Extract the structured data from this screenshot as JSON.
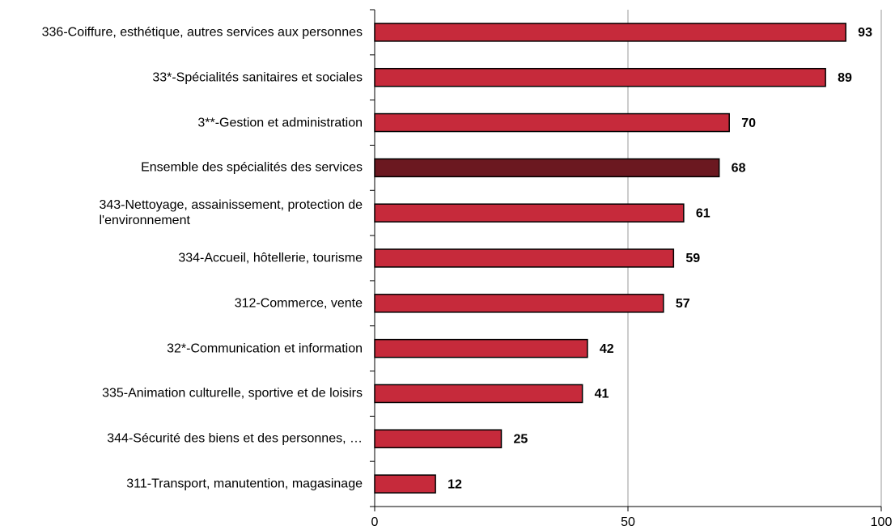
{
  "chart_data": {
    "type": "barh",
    "categories": [
      "336-Coiffure, esthétique, autres services aux personnes",
      "33*-Spécialités sanitaires et sociales",
      "3**-Gestion et administration",
      "Ensemble des spécialités des services",
      "343-Nettoyage, assainissement, protection de\nl'environnement",
      "334-Accueil, hôtellerie, tourisme",
      "312-Commerce, vente",
      "32*-Communication et information",
      "335-Animation culturelle, sportive et de loisirs",
      "344-Sécurité des biens et des personnes, …",
      "311-Transport, manutention, magasinage"
    ],
    "values": [
      93,
      89,
      70,
      68,
      61,
      59,
      57,
      42,
      41,
      25,
      12
    ],
    "colors": [
      "#c62a3b",
      "#c62a3b",
      "#c62a3b",
      "#6b1820",
      "#c62a3b",
      "#c62a3b",
      "#c62a3b",
      "#c62a3b",
      "#c62a3b",
      "#c62a3b",
      "#c62a3b"
    ],
    "xlim": [
      0,
      100
    ],
    "xticks": [
      0,
      50,
      100
    ],
    "grid": true
  }
}
